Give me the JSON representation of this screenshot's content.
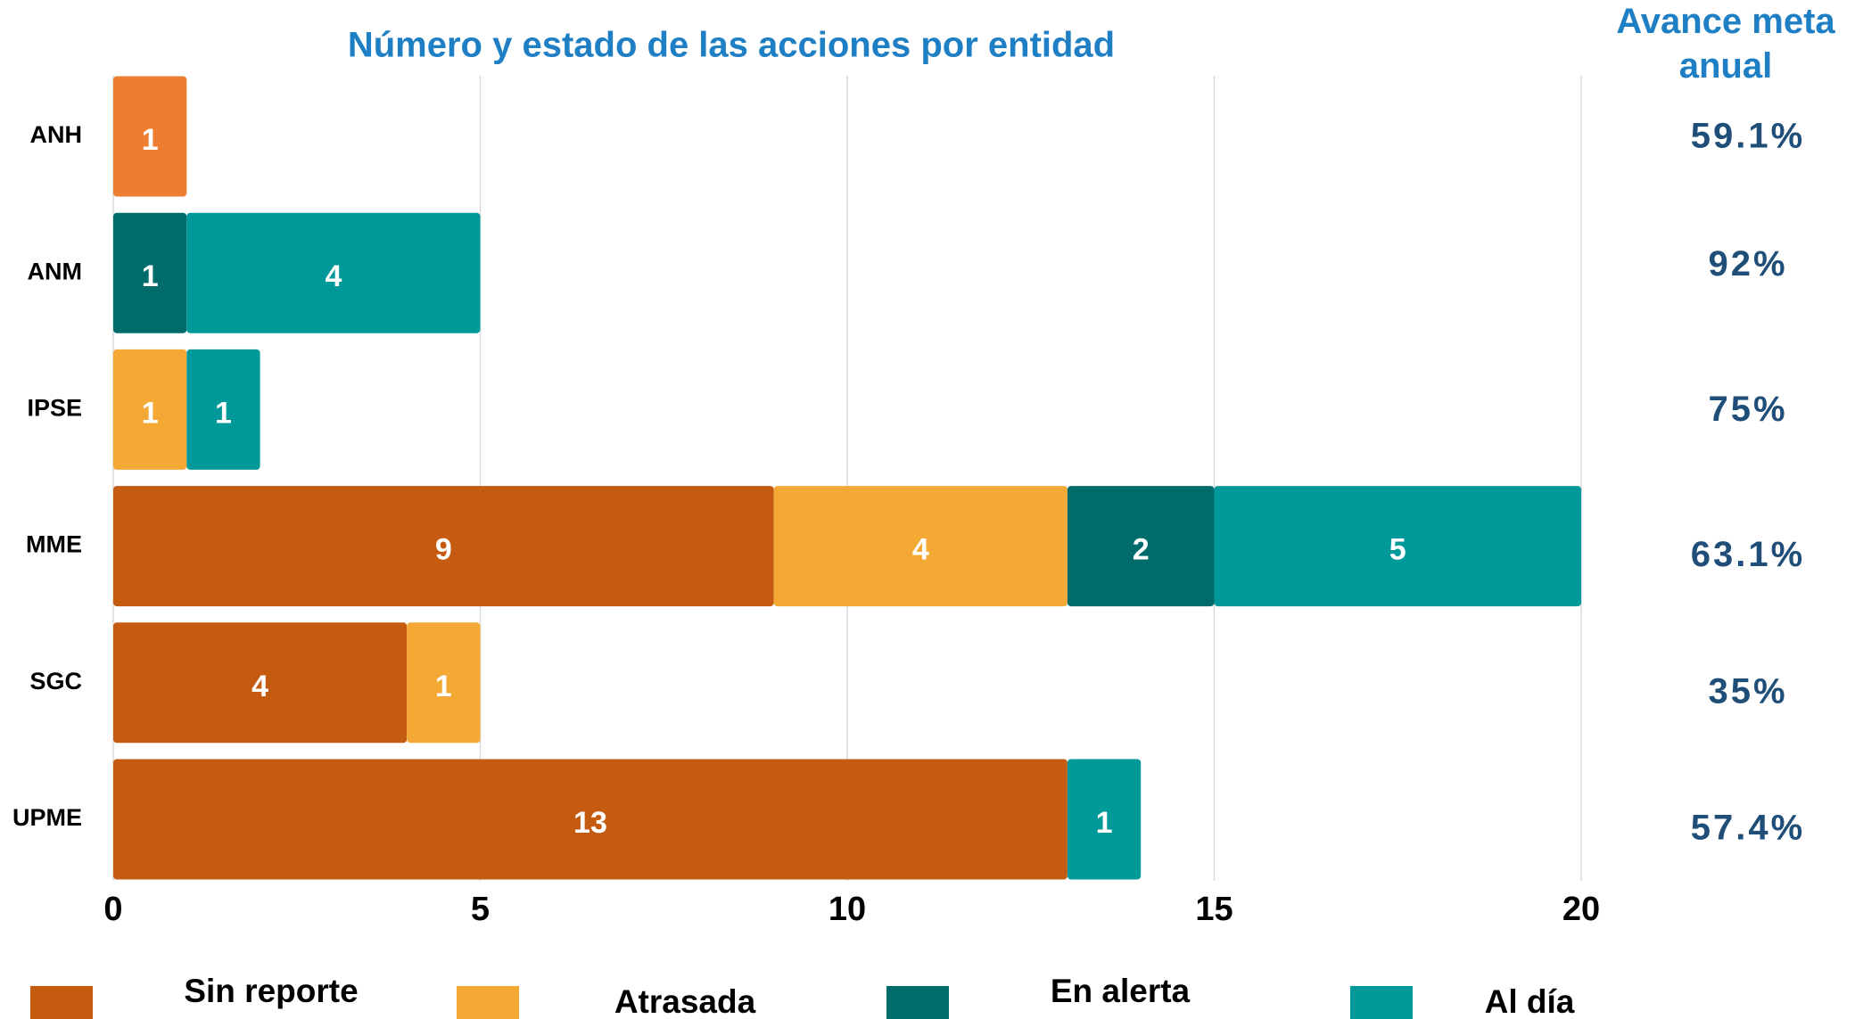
{
  "chart_data": {
    "type": "stacked_barh",
    "title": "Número y estado de las acciones por entidad",
    "categories": [
      "ANH",
      "ANM",
      "IPSE",
      "MME",
      "SGC",
      "UPME"
    ],
    "series": [
      {
        "name": "Sin reporte",
        "color": "#c55a11",
        "point_colors": [
          "#ed7d31",
          null,
          null,
          null,
          null,
          null
        ],
        "values": [
          1,
          null,
          null,
          9,
          4,
          13
        ]
      },
      {
        "name": "Atrasada",
        "color": "#f4a935",
        "values": [
          null,
          null,
          1,
          4,
          1,
          null
        ]
      },
      {
        "name": "En alerta",
        "color": "#006b6b",
        "values": [
          null,
          1,
          null,
          2,
          null,
          null
        ]
      },
      {
        "name": "Al día",
        "color": "#009999",
        "values": [
          null,
          4,
          1,
          5,
          null,
          1
        ]
      }
    ],
    "xlim": [
      0,
      20
    ],
    "xticks": [
      0,
      5,
      10,
      15,
      20
    ],
    "grid": true,
    "legend": "bottom"
  },
  "annual_progress": {
    "title": "Avance meta anual",
    "values": [
      59.1,
      92,
      75,
      63.1,
      35,
      57.4
    ],
    "value_labels": [
      "59.1%",
      "92%",
      "75%",
      "63.1%",
      "35%",
      "57.4%"
    ]
  }
}
